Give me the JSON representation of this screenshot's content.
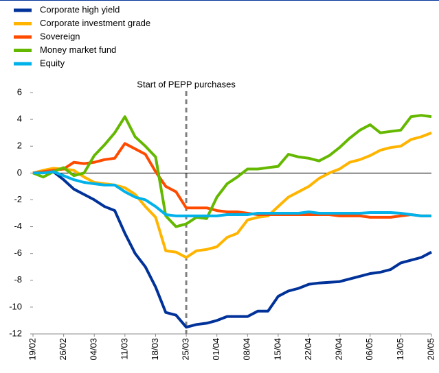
{
  "chart_data": {
    "type": "line",
    "categories": [
      "19/02",
      null,
      null,
      "26/02",
      null,
      null,
      "04/03",
      null,
      null,
      "11/03",
      null,
      null,
      "18/03",
      null,
      null,
      "25/03",
      null,
      null,
      "01/04",
      null,
      null,
      "08/04",
      null,
      null,
      "15/04",
      null,
      null,
      "22/04",
      null,
      null,
      "29/04",
      null,
      null,
      "06/05",
      null,
      null,
      "13/05",
      null,
      null,
      "20/05"
    ],
    "series": [
      {
        "name": "Corporate high yield",
        "color": "#003299",
        "values": [
          0,
          0.1,
          0.1,
          -0.5,
          -1.2,
          -1.6,
          -2.0,
          -2.5,
          -2.8,
          -4.5,
          -6.0,
          -7.0,
          -8.5,
          -10.4,
          -10.6,
          -11.5,
          -11.3,
          -11.2,
          -11.0,
          -10.7,
          -10.7,
          -10.7,
          -10.3,
          -10.3,
          -9.2,
          -8.8,
          -8.6,
          -8.3,
          -8.2,
          -8.15,
          -8.1,
          -7.9,
          -7.7,
          -7.5,
          -7.4,
          -7.2,
          -6.7,
          -6.5,
          -6.3,
          -5.9
        ]
      },
      {
        "name": "Corporate investment grade",
        "color": "#ffb400",
        "values": [
          0,
          0.2,
          0.35,
          0.3,
          0.2,
          -0.3,
          -0.7,
          -0.8,
          -0.9,
          -1.1,
          -1.6,
          -2.5,
          -3.3,
          -5.8,
          -5.9,
          -6.3,
          -5.8,
          -5.7,
          -5.5,
          -4.8,
          -4.5,
          -3.5,
          -3.3,
          -3.2,
          -2.5,
          -1.8,
          -1.4,
          -1.0,
          -0.4,
          0,
          0.3,
          0.8,
          1.0,
          1.3,
          1.7,
          1.9,
          2.0,
          2.5,
          2.7,
          3.0
        ]
      },
      {
        "name": "Sovereign",
        "color": "#ff4b00",
        "values": [
          0,
          0.1,
          0.2,
          0.3,
          0.8,
          0.7,
          0.8,
          1.0,
          1.1,
          2.2,
          1.8,
          1.4,
          0.1,
          -1.0,
          -1.4,
          -2.6,
          -2.6,
          -2.6,
          -2.8,
          -2.9,
          -2.9,
          -3.0,
          -3.1,
          -3.1,
          -3.1,
          -3.1,
          -3.1,
          -3.1,
          -3.1,
          -3.1,
          -3.2,
          -3.2,
          -3.2,
          -3.3,
          -3.3,
          -3.3,
          -3.2,
          -3.1,
          -3.2,
          -3.2
        ]
      },
      {
        "name": "Money market fund",
        "color": "#65b800",
        "values": [
          0,
          -0.3,
          0.1,
          0.4,
          -0.2,
          0,
          1.3,
          2.1,
          3.0,
          4.2,
          2.7,
          2.0,
          1.2,
          -3.2,
          -4.0,
          -3.8,
          -3.3,
          -3.4,
          -1.8,
          -0.8,
          -0.3,
          0.3,
          0.3,
          0.4,
          0.5,
          1.4,
          1.2,
          1.1,
          0.9,
          1.3,
          1.9,
          2.6,
          3.2,
          3.6,
          3.0,
          3.1,
          3.2,
          4.2,
          4.3,
          4.2
        ]
      },
      {
        "name": "Equity",
        "color": "#00b1ea",
        "values": [
          0,
          0,
          0.1,
          -0.2,
          -0.5,
          -0.7,
          -0.8,
          -0.9,
          -0.9,
          -1.4,
          -1.8,
          -2.0,
          -2.5,
          -3.1,
          -3.2,
          -3.2,
          -3.2,
          -3.2,
          -3.2,
          -3.1,
          -3.1,
          -3.1,
          -3.0,
          -3.0,
          -3.0,
          -3.0,
          -3.0,
          -2.9,
          -3.0,
          -3.0,
          -3.0,
          -3.0,
          -3.0,
          -2.95,
          -2.95,
          -2.95,
          -3.0,
          -3.1,
          -3.2,
          -3.2
        ]
      }
    ],
    "annotation": {
      "text": "Start of PEPP purchases",
      "x": "25/03"
    },
    "ylim": [
      -12,
      6
    ],
    "yticks": [
      6,
      4,
      2,
      0,
      -2,
      -4,
      -6,
      -8,
      -10,
      -12
    ]
  }
}
